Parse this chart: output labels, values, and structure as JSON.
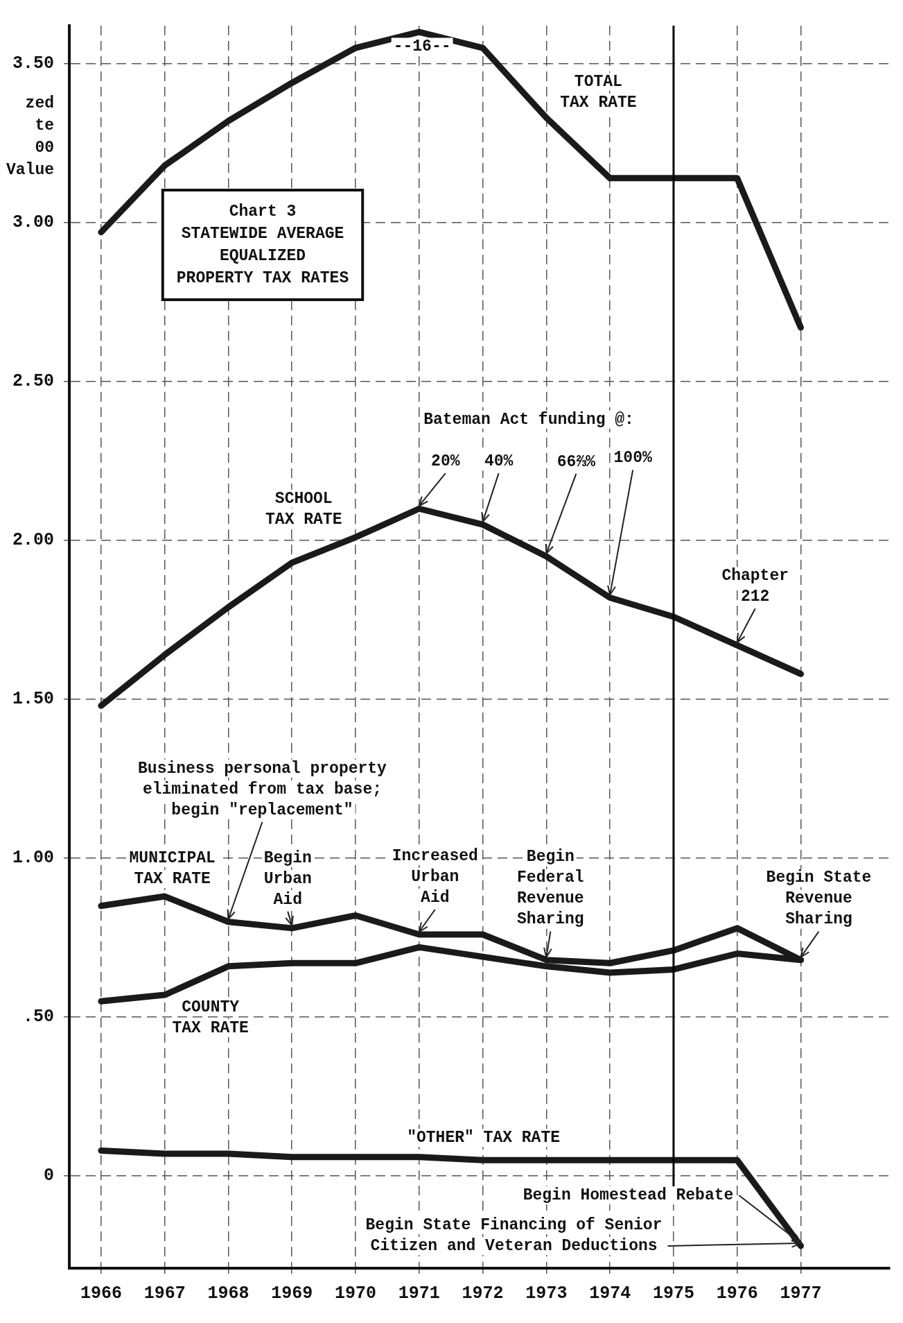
{
  "chart_data": {
    "type": "line",
    "title": "Chart 3\nSTATEWIDE AVERAGE\nEQUALIZED\nPROPERTY TAX RATES",
    "ylabel": "zed\nte\n00\nValue",
    "x": [
      1966,
      1967,
      1968,
      1969,
      1970,
      1971,
      1972,
      1973,
      1974,
      1975,
      1976,
      1977
    ],
    "series": [
      {
        "name": "TOTAL\nTAX RATE",
        "color": "#1a1a1a",
        "values": [
          2.97,
          3.18,
          3.32,
          3.44,
          3.55,
          3.6,
          3.55,
          3.33,
          3.14,
          3.14,
          3.14,
          2.67
        ]
      },
      {
        "name": "SCHOOL\nTAX RATE",
        "color": "#1a1a1a",
        "values": [
          1.48,
          1.64,
          1.79,
          1.93,
          2.01,
          2.1,
          2.05,
          1.95,
          1.82,
          1.76,
          1.67,
          1.58
        ]
      },
      {
        "name": "MUNICIPAL\nTAX RATE",
        "color": "#1a1a1a",
        "values": [
          0.85,
          0.88,
          0.8,
          0.78,
          0.82,
          0.76,
          0.76,
          0.68,
          0.67,
          0.71,
          0.78,
          0.68
        ]
      },
      {
        "name": "COUNTY\nTAX RATE",
        "color": "#1a1a1a",
        "values": [
          0.55,
          0.57,
          0.66,
          0.67,
          0.67,
          0.72,
          0.69,
          0.66,
          0.64,
          0.65,
          0.7,
          0.68
        ]
      },
      {
        "name": "\"OTHER\" TAX RATE",
        "color": "#1a1a1a",
        "values": [
          0.08,
          0.07,
          0.07,
          0.06,
          0.06,
          0.06,
          0.05,
          0.05,
          0.05,
          0.05,
          0.05,
          -0.22
        ]
      }
    ],
    "xlim": [
      1965.5,
      1978.4
    ],
    "xticks": [
      1966,
      1967,
      1968,
      1969,
      1970,
      1971,
      1972,
      1973,
      1974,
      1975,
      1976,
      1977
    ],
    "ylim": [
      -0.29,
      3.62
    ],
    "yticks": [
      0,
      {
        "value": 0.5,
        "label": ".50"
      },
      {
        "value": 1,
        "label": "1.00"
      },
      {
        "value": 1.5,
        "label": "1.50"
      },
      {
        "value": 2,
        "label": "2.00"
      },
      {
        "value": 2.5,
        "label": "2.50"
      },
      {
        "value": 3,
        "label": "3.00"
      },
      {
        "value": 3.5,
        "label": "3.50"
      }
    ],
    "grid": true,
    "legend": false,
    "marker": "none",
    "line_style": "solid",
    "ref_lines": [
      {
        "axis": "x",
        "value": 1975,
        "color": "#000000",
        "line_style": "solid"
      }
    ],
    "annotations": [
      "--16--",
      "Bateman Act funding @:",
      {
        "text": "20%",
        "x": 1971,
        "y": 2.1
      },
      {
        "text": "40%",
        "x": 1972,
        "y": 2.05
      },
      {
        "text": "66⅔%",
        "x": 1973,
        "y": 1.95
      },
      {
        "text": "100%",
        "x": 1974,
        "y": 1.82
      },
      {
        "text": "Chapter\n212",
        "x": 1976,
        "y": 1.67
      },
      {
        "text": "Business personal property\neliminated from tax base;\nbegin \"replacement\"",
        "x": 1968,
        "y": 0.8
      },
      {
        "text": "Begin\nUrban\nAid",
        "x": 1969,
        "y": 0.78
      },
      {
        "text": "Increased\nUrban\nAid",
        "x": 1971,
        "y": 0.76
      },
      {
        "text": "Begin\nFederal\nRevenue\nSharing",
        "x": 1973,
        "y": 0.68
      },
      {
        "text": "Begin State\nRevenue\nSharing",
        "x": 1977,
        "y": 0.68
      },
      {
        "text": "Begin Homestead Rebate",
        "x": 1977,
        "y": -0.22
      },
      {
        "text": "Begin State Financing of Senior\nCitizen and Veteran Deductions",
        "x": 1977,
        "y": -0.22
      }
    ]
  }
}
